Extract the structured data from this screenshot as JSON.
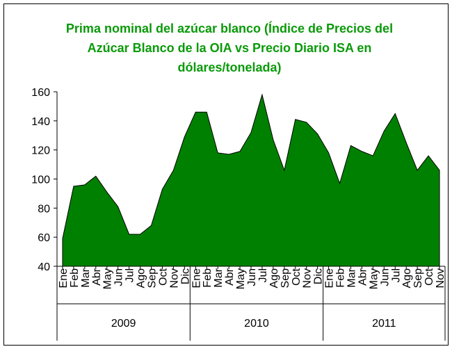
{
  "chart_data": {
    "type": "area",
    "title": "Prima nominal del azúcar blanco (Índice de Precios del Azúcar Blanco de la OIA vs Precio Diario ISA en dólares/tonelada)",
    "groups": [
      {
        "name": "2009",
        "categories": [
          "Ene",
          "Feb",
          "Mar",
          "Abr",
          "May",
          "Jun",
          "Jul",
          "Ago",
          "Sep",
          "Oct",
          "Nov",
          "Dic"
        ]
      },
      {
        "name": "2010",
        "categories": [
          "Ene",
          "Feb",
          "Mar",
          "Abr",
          "May",
          "Jun",
          "Jul",
          "Ago",
          "Sep",
          "Oct",
          "Nov",
          "Dic"
        ]
      },
      {
        "name": "2011",
        "categories": [
          "Ene",
          "Feb",
          "Mar",
          "Abr",
          "May",
          "Jun",
          "Jul",
          "Ago",
          "Sep",
          "Oct",
          "Nov"
        ]
      }
    ],
    "values": [
      59,
      95,
      96,
      102,
      91,
      81,
      62,
      62,
      68,
      93,
      106,
      129,
      146,
      146,
      118,
      117,
      119,
      132,
      158,
      127,
      106,
      141,
      139,
      131,
      118,
      97,
      123,
      119,
      116,
      133,
      145,
      125,
      106,
      116,
      106
    ],
    "color": "#008000",
    "ylim": [
      40,
      160
    ],
    "yticks": [
      40,
      60,
      80,
      100,
      120,
      140,
      160
    ],
    "grid": false
  }
}
